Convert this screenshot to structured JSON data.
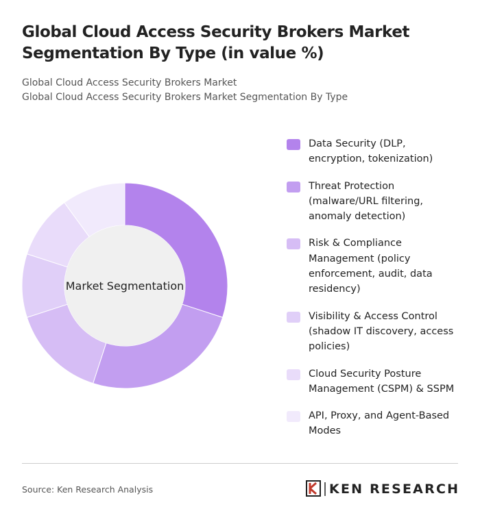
{
  "chart_data": {
    "type": "donut",
    "title": "Global Cloud Access Security Brokers Market Segmentation By Type (in value %)",
    "subtitle": [
      "Global Cloud Access Security Brokers Market",
      "Global Cloud Access Security Brokers Market Segmentation By Type"
    ],
    "center_label": "Market Segmentation",
    "categories": [
      "Data Security (DLP, encryption, tokenization)",
      "Threat Protection (malware/URL filtering, anomaly detection)",
      "Risk & Compliance Management (policy enforcement, audit, data residency)",
      "Visibility & Access Control (shadow IT discovery, access policies)",
      "Cloud Security Posture Management (CSPM) & SSPM",
      "API, Proxy, and Agent-Based Modes"
    ],
    "values": [
      30,
      25,
      15,
      10,
      10,
      10
    ],
    "colors": [
      "#b383ec",
      "#c29ef0",
      "#d6bdf5",
      "#e0cff8",
      "#e9dcfa",
      "#f1eafc"
    ]
  },
  "footer": {
    "source": "Source: Ken Research Analysis",
    "brand": "KEN RESEARCH"
  }
}
